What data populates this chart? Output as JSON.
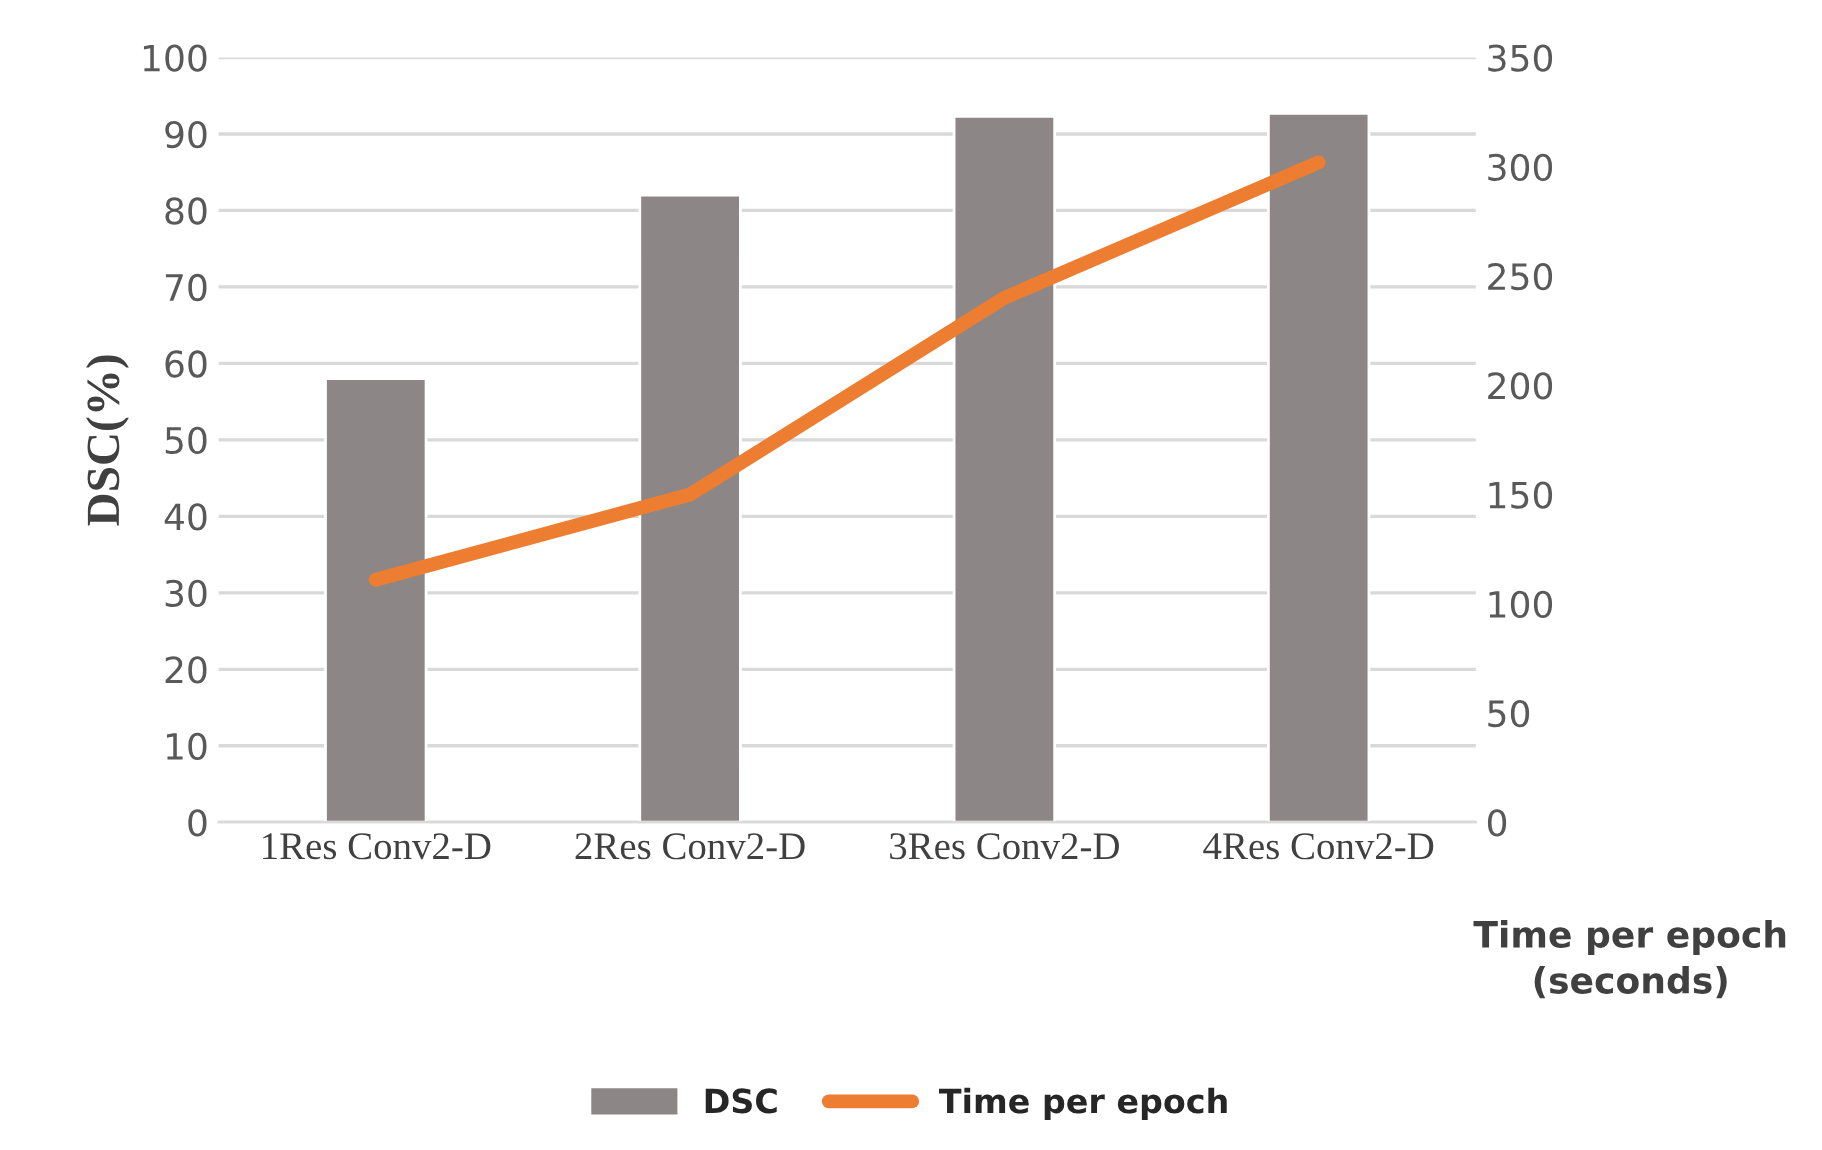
{
  "chart_data": {
    "type": "bar",
    "categories": [
      "1Res Conv2-D",
      "2Res Conv2-D",
      "3Res Conv2-D",
      "4Res Conv2-D"
    ],
    "series": [
      {
        "name": "DSC",
        "color": "#8c8786",
        "values": [
          58,
          82,
          92.3,
          92.7
        ]
      },
      {
        "name": "Time per epoch",
        "type": "line",
        "axis": "y2",
        "color": "#ed7d31",
        "values": [
          111,
          150,
          240,
          302
        ]
      }
    ],
    "ylabel": "DSC(%)",
    "y2label": "Time per epoch\n(seconds)",
    "ylim": [
      0,
      100
    ],
    "yticks": [
      0,
      10,
      20,
      30,
      40,
      50,
      60,
      70,
      80,
      90,
      100
    ],
    "y2lim": [
      0,
      350
    ],
    "y2ticks": [
      0,
      50,
      100,
      150,
      200,
      250,
      300,
      350
    ],
    "grid": "y",
    "legend": "bottom",
    "marker": "none",
    "line_style": "solid"
  }
}
